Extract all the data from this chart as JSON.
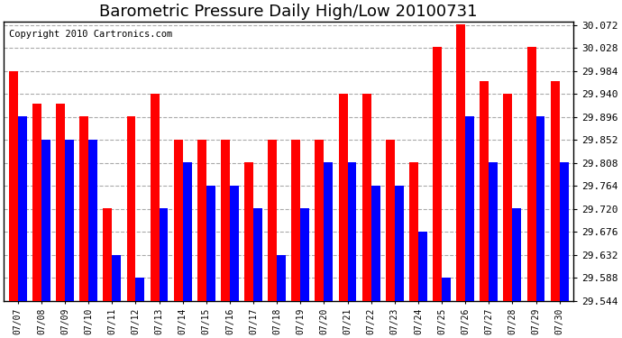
{
  "title": "Barometric Pressure Daily High/Low 20100731",
  "copyright": "Copyright 2010 Cartronics.com",
  "dates": [
    "07/07",
    "07/08",
    "07/09",
    "07/10",
    "07/11",
    "07/12",
    "07/13",
    "07/14",
    "07/15",
    "07/16",
    "07/17",
    "07/18",
    "07/19",
    "07/20",
    "07/21",
    "07/22",
    "07/23",
    "07/24",
    "07/25",
    "07/26",
    "07/27",
    "07/28",
    "07/29",
    "07/30"
  ],
  "highs": [
    29.983,
    29.921,
    29.921,
    29.897,
    29.721,
    29.897,
    29.941,
    29.853,
    29.853,
    29.853,
    29.809,
    29.853,
    29.853,
    29.853,
    29.941,
    29.941,
    29.853,
    29.809,
    30.03,
    30.074,
    29.965,
    29.941,
    30.03,
    29.965
  ],
  "lows": [
    29.897,
    29.853,
    29.853,
    29.853,
    29.632,
    29.588,
    29.721,
    29.809,
    29.765,
    29.765,
    29.721,
    29.632,
    29.721,
    29.809,
    29.809,
    29.765,
    29.765,
    29.676,
    29.588,
    29.897,
    29.809,
    29.721,
    29.897,
    29.809
  ],
  "bar_color_high": "#FF0000",
  "bar_color_low": "#0000FF",
  "background_color": "#FFFFFF",
  "plot_bg_color": "#FFFFFF",
  "grid_color": "#AAAAAA",
  "ymin": 29.544,
  "ymax": 30.074,
  "ytick_step": 0.044,
  "title_fontsize": 13,
  "copyright_fontsize": 7.5
}
